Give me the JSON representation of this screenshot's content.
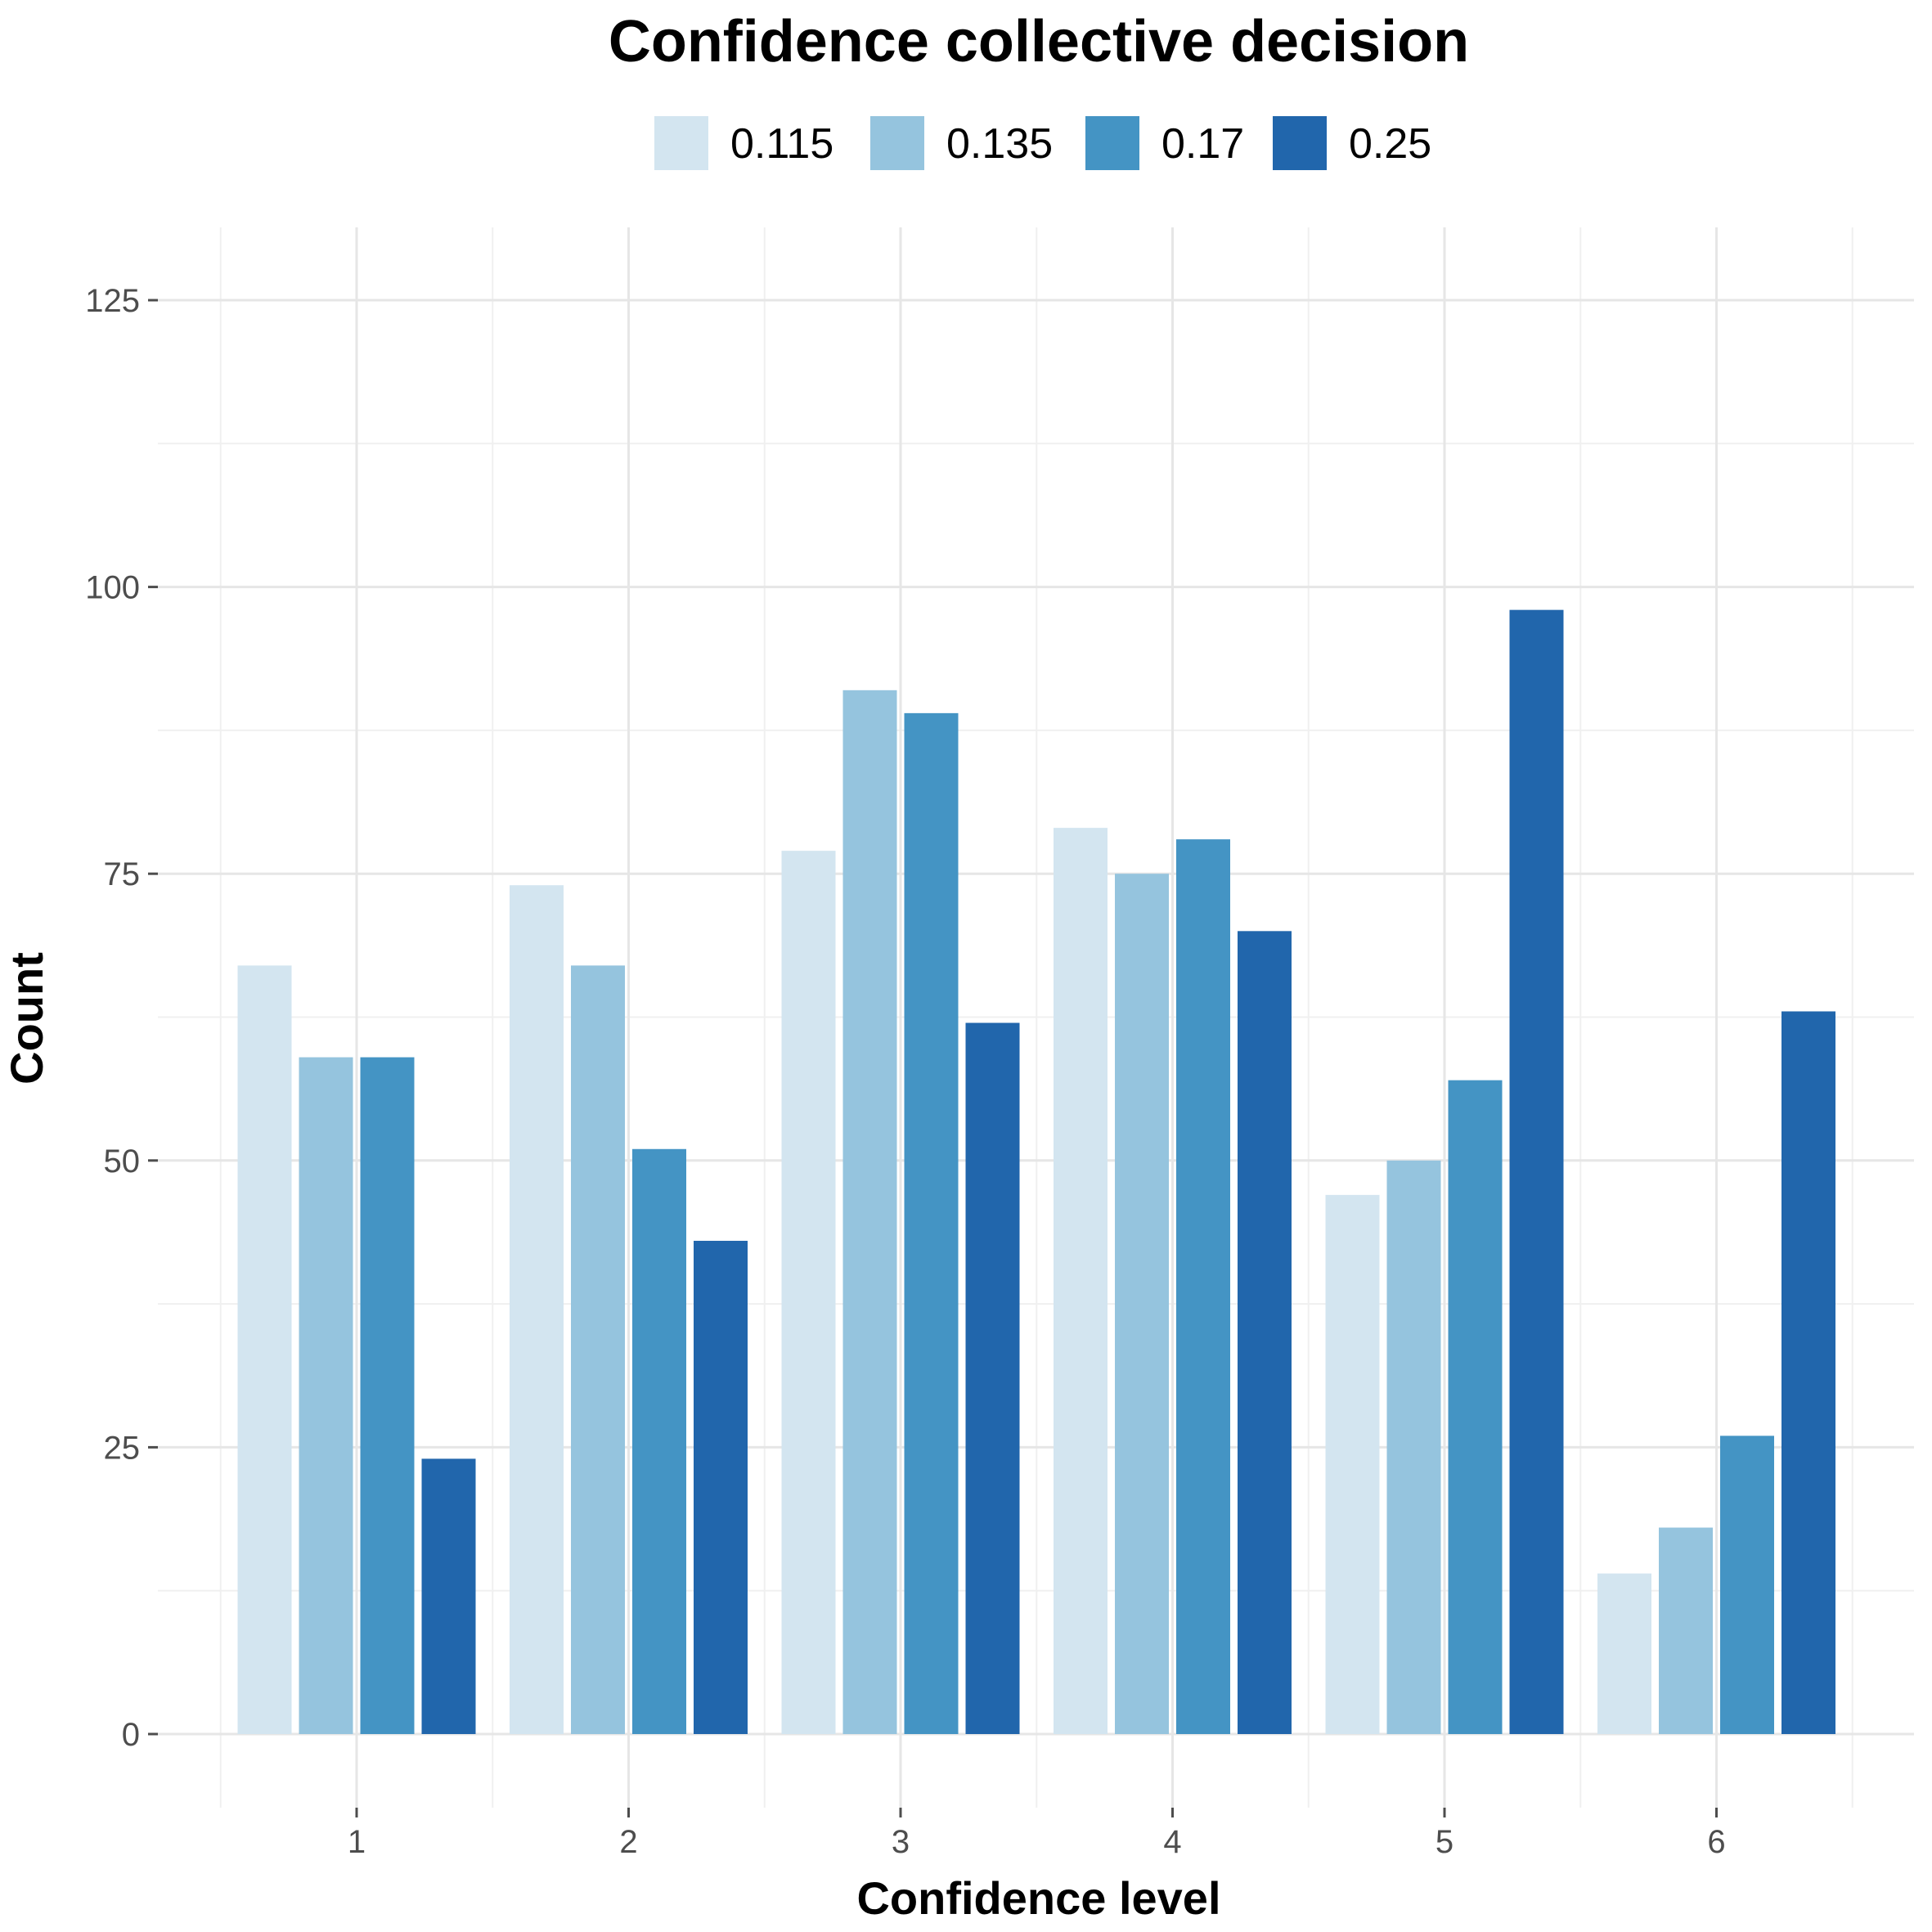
{
  "chart_data": {
    "type": "bar",
    "title": "Confidence collective decision",
    "xlabel": "Confidence level",
    "ylabel": "Count",
    "categories": [
      "1",
      "2",
      "3",
      "4",
      "5",
      "6"
    ],
    "series": [
      {
        "name": "0.115",
        "color": "#d3e5f0",
        "values": [
          67,
          74,
          77,
          79,
          47,
          14
        ]
      },
      {
        "name": "0.135",
        "color": "#95c4de",
        "values": [
          59,
          67,
          91,
          75,
          50,
          18
        ]
      },
      {
        "name": "0.17",
        "color": "#4494c4",
        "values": [
          59,
          51,
          89,
          78,
          57,
          26
        ]
      },
      {
        "name": "0.25",
        "color": "#2166ac",
        "values": [
          24,
          43,
          62,
          70,
          98,
          63
        ]
      }
    ],
    "yticks": [
      0,
      25,
      50,
      75,
      100,
      125
    ],
    "ylim": [
      -6.5,
      131.3
    ],
    "legend_position": "top",
    "grid": true
  }
}
